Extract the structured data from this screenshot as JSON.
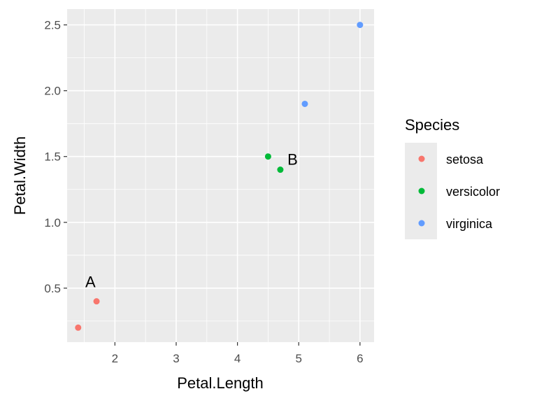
{
  "chart_data": {
    "type": "scatter",
    "xlabel": "Petal.Length",
    "ylabel": "Petal.Width",
    "xlim": [
      1.22,
      6.23
    ],
    "ylim": [
      0.09,
      2.62
    ],
    "x_ticks": [
      2,
      3,
      4,
      5,
      6
    ],
    "y_ticks": [
      0.5,
      1.0,
      1.5,
      2.0,
      2.5
    ],
    "x_tick_labels": [
      "2",
      "3",
      "4",
      "5",
      "6"
    ],
    "y_tick_labels": [
      "0.5",
      "1.0",
      "1.5",
      "2.0",
      "2.5"
    ],
    "grid": true,
    "legend": {
      "title": "Species",
      "position": "right",
      "entries": [
        "setosa",
        "versicolor",
        "virginica"
      ]
    },
    "series": [
      {
        "name": "setosa",
        "color": "#F8766D",
        "points": [
          {
            "x": 1.4,
            "y": 0.2
          },
          {
            "x": 1.7,
            "y": 0.4
          }
        ]
      },
      {
        "name": "versicolor",
        "color": "#00BA38",
        "points": [
          {
            "x": 4.5,
            "y": 1.5
          },
          {
            "x": 4.7,
            "y": 1.4
          }
        ]
      },
      {
        "name": "virginica",
        "color": "#619CFF",
        "points": [
          {
            "x": 5.1,
            "y": 1.9
          },
          {
            "x": 6.0,
            "y": 2.5
          }
        ]
      }
    ],
    "annotations": [
      {
        "text": "A",
        "x": 1.6,
        "y": 0.55
      },
      {
        "text": "B",
        "x": 4.9,
        "y": 1.48
      }
    ],
    "colors": {
      "panel_background": "#EBEBEB",
      "grid_major": "#FFFFFF",
      "tick_mark": "#333333",
      "legend_key_background": "#EBEBEB"
    }
  }
}
